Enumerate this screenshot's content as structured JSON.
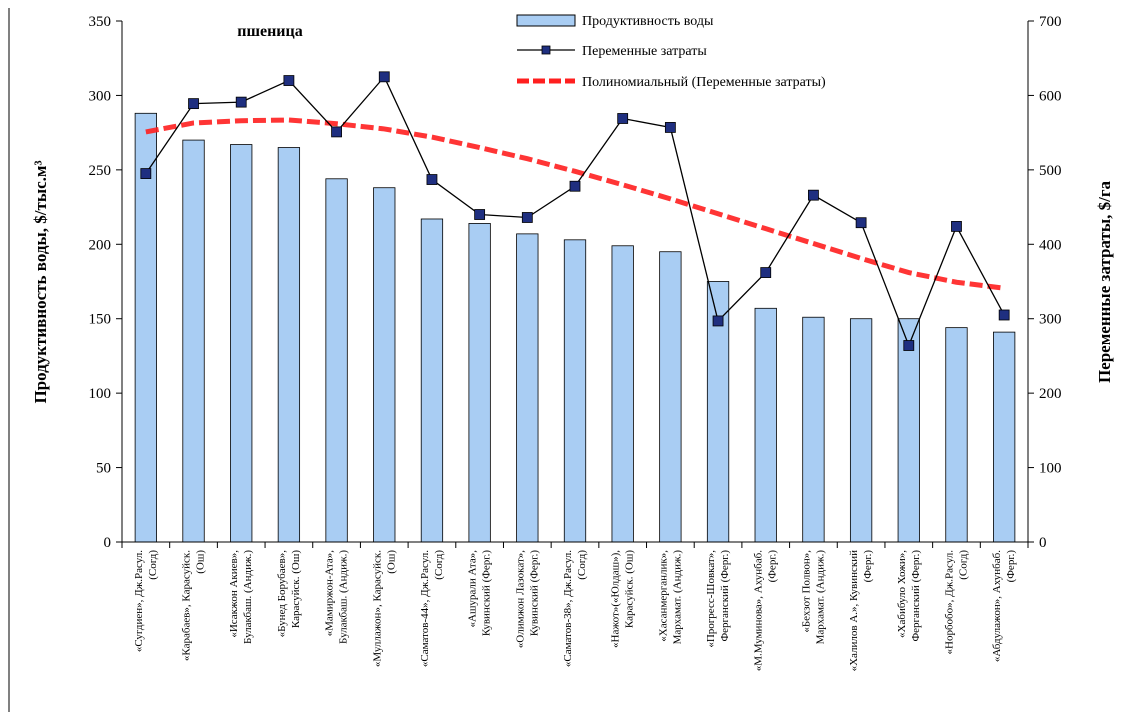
{
  "chart_data": {
    "type": "bar",
    "title": "пшеница",
    "ylabel_left": "Продуктивность воды, $/тыс.м³",
    "ylabel_right": "Переменные затраты, $/га",
    "ylim_left": [
      0,
      350
    ],
    "ylim_right": [
      0,
      700
    ],
    "yticks_left": [
      "0",
      "50",
      "100",
      "150",
      "200",
      "250",
      "300",
      "350"
    ],
    "yticks_right": [
      "0",
      "100",
      "200",
      "300",
      "400",
      "500",
      "600",
      "700"
    ],
    "categories": [
      [
        "«Сугдиен», Дж.Расул.",
        "(Согд)"
      ],
      [
        "«Карабаев», Карасуйск.",
        "(Ош)"
      ],
      [
        "«Исакжон Акиев»,",
        "Булакбаш. (Андиж.)"
      ],
      [
        "«Бунед Борубаев»,",
        "Карасуйск. (Ош)"
      ],
      [
        "«Мамиржон-Ата»,",
        "Булакбаш. (Андиж.)"
      ],
      [
        "«Муллажон», Карасуйск.",
        "(Ош)"
      ],
      [
        "«Саматов-44», Дж.Расул.",
        "(Согд)"
      ],
      [
        "«Ашурали Ата»,",
        "Кувинский (Ферг.)"
      ],
      [
        "«Олимжон Лазокат»,",
        "Кувинский (Ферг.)"
      ],
      [
        "«Саматов-38», Дж.Расул.",
        "(Согд)"
      ],
      [
        "«Нажот»(«Юлдаш»),",
        "Карасуйск. (Ош)"
      ],
      [
        "«Хасанмерганлик»,",
        "Мархамат. (Андиж.)"
      ],
      [
        "«Прогресс-Шовкат»,",
        "Ферганский (Ферг.)"
      ],
      [
        "«М.Муминова», Ахунбаб.",
        "(Ферг.)"
      ],
      [
        "«Бехзот Полвон»,",
        "Мархамат. (Андиж.)"
      ],
      [
        "«Халилов А.», Кувинский",
        "(Ферг.)"
      ],
      [
        "«Хабибуло Хожи»,",
        "Ферганский (Ферг.)"
      ],
      [
        "«Норбобо», Дж.Расул.",
        "(Согд)"
      ],
      [
        "«Абдулажон», Ахунбаб.",
        "(Ферг.)"
      ]
    ],
    "series": [
      {
        "name": "Продуктивность воды",
        "type": "bar",
        "axis": "left",
        "color": "#a9cdf3",
        "values": [
          288,
          270,
          267,
          265,
          244,
          238,
          217,
          214,
          207,
          203,
          199,
          195,
          175,
          157,
          151,
          150,
          150,
          144,
          141
        ]
      },
      {
        "name": "Переменные затраты",
        "type": "line",
        "axis": "right",
        "color": "#000000",
        "marker_color": "#1f2f80",
        "values": [
          495,
          589,
          591,
          620,
          551,
          625,
          487,
          440,
          436,
          478,
          569,
          557,
          297,
          362,
          466,
          429,
          264,
          424,
          305
        ]
      },
      {
        "name": "Полиномиальный (Переменные затраты)",
        "type": "trend",
        "axis": "right",
        "color": "#ff1f1f",
        "values": [
          551,
          563,
          566,
          567,
          562,
          555,
          544,
          530,
          515,
          498,
          480,
          461,
          441,
          421,
          401,
          381,
          362,
          349,
          341
        ]
      }
    ],
    "legend": {
      "position": "top-center",
      "items": [
        "Продуктивность воды",
        "Переменные затраты",
        "Полиномиальный (Переменные затраты)"
      ]
    },
    "grid": false
  }
}
